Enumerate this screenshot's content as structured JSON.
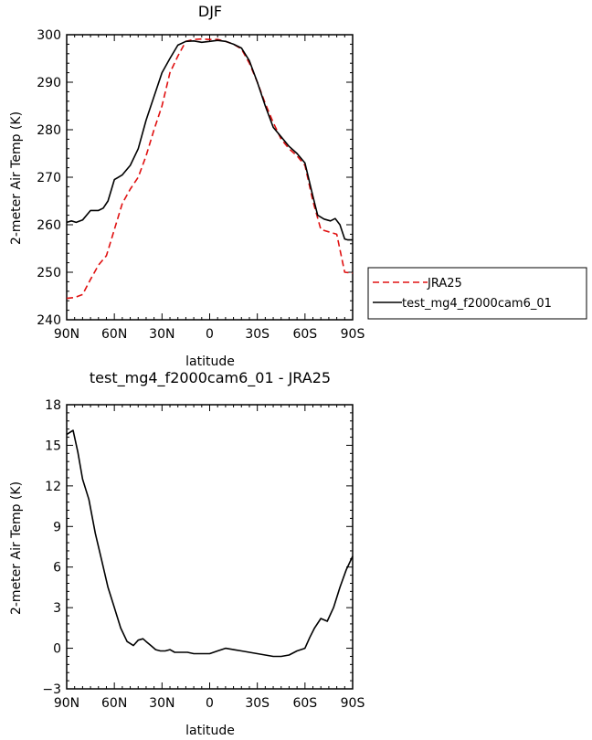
{
  "chart_data": [
    {
      "type": "line",
      "title": "DJF",
      "xlabel": "latitude",
      "ylabel": "2-meter Air Temp (K)",
      "xlim": [
        90,
        -90
      ],
      "ylim": [
        240,
        300
      ],
      "xticks": [
        90,
        60,
        30,
        0,
        -30,
        -60,
        -90
      ],
      "xtick_labels": [
        "90N",
        "60N",
        "30N",
        "0",
        "30S",
        "60S",
        "90S"
      ],
      "yticks": [
        240,
        250,
        260,
        270,
        280,
        290,
        300
      ],
      "ytick_labels": [
        "240",
        "250",
        "260",
        "270",
        "280",
        "290",
        "300"
      ],
      "legend_position": "right",
      "series": [
        {
          "name": "JRA25",
          "color": "#e01010",
          "dash": "dashed",
          "x": [
            90,
            85,
            80,
            75,
            70,
            65,
            60,
            55,
            50,
            45,
            40,
            35,
            30,
            25,
            20,
            15,
            10,
            5,
            0,
            -5,
            -10,
            -15,
            -20,
            -25,
            -30,
            -35,
            -40,
            -45,
            -50,
            -55,
            -60,
            -65,
            -70,
            -75,
            -80,
            -85,
            -90
          ],
          "y": [
            244.5,
            244.7,
            245.3,
            248.5,
            251.5,
            253.5,
            259,
            264.5,
            267.5,
            270,
            274.5,
            280,
            285,
            292,
            295.5,
            298.6,
            299,
            299.1,
            299,
            299,
            298.6,
            298,
            297,
            294,
            290,
            285.5,
            281.5,
            278,
            276,
            274.5,
            272.5,
            265,
            259,
            258.5,
            258,
            250,
            249.8
          ]
        },
        {
          "name": "test_mg4_f2000cam6_01",
          "color": "#000000",
          "dash": "solid",
          "x": [
            90,
            87,
            84,
            80,
            75,
            70,
            67,
            64,
            60,
            55,
            50,
            45,
            40,
            35,
            30,
            25,
            20,
            15,
            10,
            5,
            0,
            -5,
            -10,
            -15,
            -20,
            -25,
            -30,
            -35,
            -40,
            -45,
            -50,
            -55,
            -60,
            -65,
            -68,
            -72,
            -76,
            -79,
            -82,
            -85,
            -87,
            -90
          ],
          "y": [
            260.5,
            260.8,
            260.5,
            261,
            263,
            263,
            263.5,
            265,
            269.5,
            270.5,
            272.5,
            276,
            282,
            287,
            292,
            295,
            297.8,
            298.6,
            298.7,
            298.4,
            298.6,
            298.8,
            298.6,
            298,
            297.2,
            294.5,
            290,
            285,
            280.5,
            278.5,
            276.5,
            275,
            273,
            266,
            262,
            261.2,
            260.8,
            261.3,
            260,
            257,
            256.8,
            256.8
          ]
        }
      ]
    },
    {
      "type": "line",
      "title": "test_mg4_f2000cam6_01 - JRA25",
      "xlabel": "latitude",
      "ylabel": "2-meter Air Temp (K)",
      "xlim": [
        90,
        -90
      ],
      "ylim": [
        -3,
        18
      ],
      "xticks": [
        90,
        60,
        30,
        0,
        -30,
        -60,
        -90
      ],
      "xtick_labels": [
        "90N",
        "60N",
        "30N",
        "0",
        "30S",
        "60S",
        "90S"
      ],
      "yticks": [
        -3,
        0,
        3,
        6,
        9,
        12,
        15,
        18
      ],
      "ytick_labels": [
        "-3",
        "0",
        "3",
        "6",
        "9",
        "12",
        "15",
        "18"
      ],
      "series": [
        {
          "color": "#000000",
          "dash": "solid",
          "x": [
            90,
            86,
            83,
            80,
            76,
            72,
            68,
            64,
            60,
            56,
            52,
            48,
            45,
            42,
            40,
            37,
            34,
            31,
            28,
            25,
            22,
            18,
            14,
            10,
            5,
            0,
            -5,
            -10,
            -15,
            -20,
            -25,
            -30,
            -35,
            -40,
            -45,
            -50,
            -55,
            -60,
            -63,
            -66,
            -70,
            -74,
            -78,
            -82,
            -86,
            -90
          ],
          "y": [
            15.8,
            16.1,
            14.5,
            12.5,
            11,
            8.5,
            6.5,
            4.5,
            3,
            1.5,
            0.5,
            0.2,
            0.6,
            0.7,
            0.5,
            0.2,
            -0.1,
            -0.2,
            -0.2,
            -0.1,
            -0.3,
            -0.3,
            -0.3,
            -0.4,
            -0.4,
            -0.4,
            -0.2,
            0.0,
            -0.1,
            -0.2,
            -0.3,
            -0.4,
            -0.5,
            -0.6,
            -0.6,
            -0.5,
            -0.2,
            0.0,
            0.8,
            1.5,
            2.2,
            2.0,
            3.0,
            4.5,
            5.8,
            6.8
          ]
        }
      ]
    }
  ]
}
